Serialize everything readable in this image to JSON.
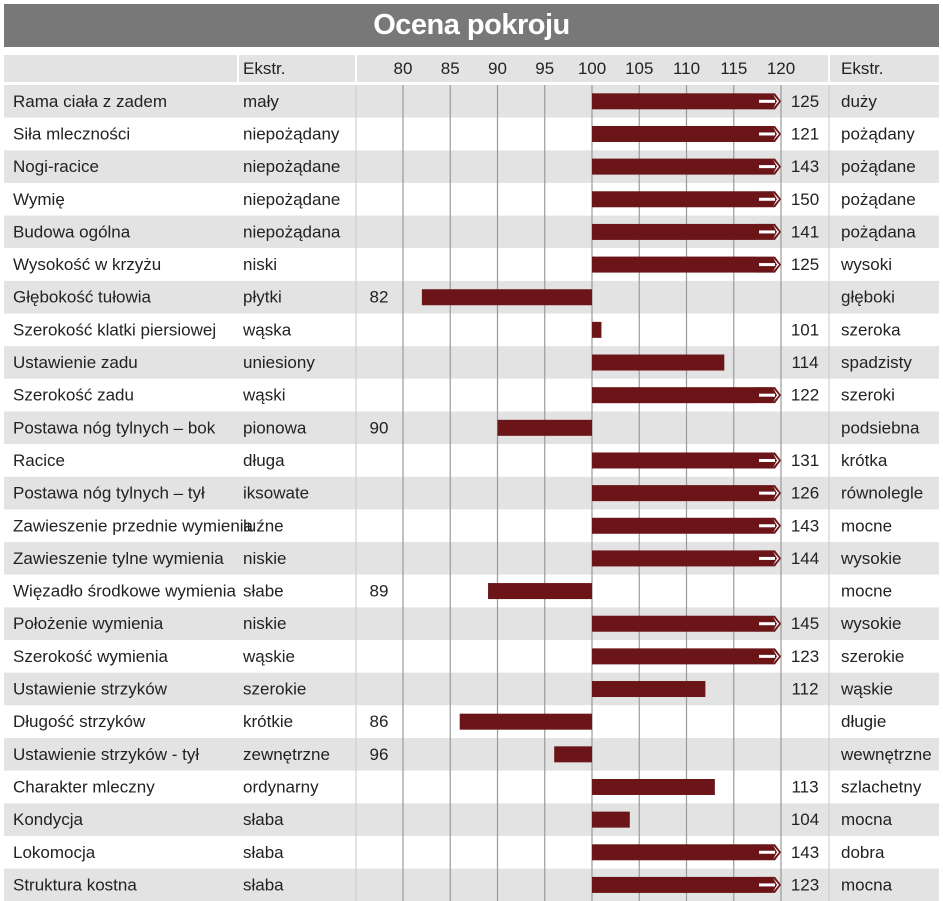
{
  "title": "Ocena pokroju",
  "chart_data": {
    "type": "bar",
    "title": "Ocena pokroju",
    "left_header": "Ekstr.",
    "right_header": "Ekstr.",
    "x_ticks": [
      80,
      85,
      90,
      95,
      100,
      105,
      110,
      115,
      120
    ],
    "xlim": [
      77,
      122
    ],
    "baseline": 100,
    "clip_max": 120,
    "bar_color": "#6b1518",
    "rows": [
      {
        "trait": "Rama ciała z zadem",
        "low": "mały",
        "value": 125,
        "high": "duży"
      },
      {
        "trait": "Siła mleczności",
        "low": "niepożądany",
        "value": 121,
        "high": "pożądany"
      },
      {
        "trait": "Nogi-racice",
        "low": "niepożądane",
        "value": 143,
        "high": "pożądane"
      },
      {
        "trait": "Wymię",
        "low": "niepożądane",
        "value": 150,
        "high": "pożądane"
      },
      {
        "trait": "Budowa ogólna",
        "low": "niepożądana",
        "value": 141,
        "high": "pożądana"
      },
      {
        "trait": "Wysokość w krzyżu",
        "low": "niski",
        "value": 125,
        "high": "wysoki"
      },
      {
        "trait": "Głębokość tułowia",
        "low": "płytki",
        "value": 82,
        "high": "głęboki"
      },
      {
        "trait": "Szerokość klatki piersiowej",
        "low": "wąska",
        "value": 101,
        "high": "szeroka"
      },
      {
        "trait": "Ustawienie zadu",
        "low": "uniesiony",
        "value": 114,
        "high": "spadzisty"
      },
      {
        "trait": "Szerokość zadu",
        "low": "wąski",
        "value": 122,
        "high": "szeroki"
      },
      {
        "trait": "Postawa nóg tylnych –  bok",
        "low": "pionowa",
        "value": 90,
        "high": "podsiebna"
      },
      {
        "trait": "Racice",
        "low": "długa",
        "value": 131,
        "high": "krótka"
      },
      {
        "trait": "Postawa nóg tylnych –  tył",
        "low": "iksowate",
        "value": 126,
        "high": "równolegle"
      },
      {
        "trait": "Zawieszenie przednie wymienia",
        "low": "luźne",
        "value": 143,
        "high": "mocne"
      },
      {
        "trait": "Zawieszenie tylne wymienia",
        "low": "niskie",
        "value": 144,
        "high": "wysokie"
      },
      {
        "trait": "Więzadło środkowe wymienia",
        "low": "słabe",
        "value": 89,
        "high": "mocne"
      },
      {
        "trait": "Położenie wymienia",
        "low": "niskie",
        "value": 145,
        "high": "wysokie"
      },
      {
        "trait": "Szerokość wymienia",
        "low": "wąskie",
        "value": 123,
        "high": "szerokie"
      },
      {
        "trait": "Ustawienie strzyków",
        "low": "szerokie",
        "value": 112,
        "high": "wąskie"
      },
      {
        "trait": "Długość strzyków",
        "low": "krótkie",
        "value": 86,
        "high": "długie"
      },
      {
        "trait": "Ustawienie strzyków - tył",
        "low": "zewnętrzne",
        "value": 96,
        "high": "wewnętrzne"
      },
      {
        "trait": "Charakter mleczny",
        "low": "ordynarny",
        "value": 113,
        "high": "szlachetny"
      },
      {
        "trait": "Kondycja",
        "low": "słaba",
        "value": 104,
        "high": "mocna"
      },
      {
        "trait": "Lokomocja",
        "low": "słaba",
        "value": 143,
        "high": "dobra"
      },
      {
        "trait": "Struktura kostna",
        "low": "słaba",
        "value": 123,
        "high": "mocna"
      }
    ]
  }
}
